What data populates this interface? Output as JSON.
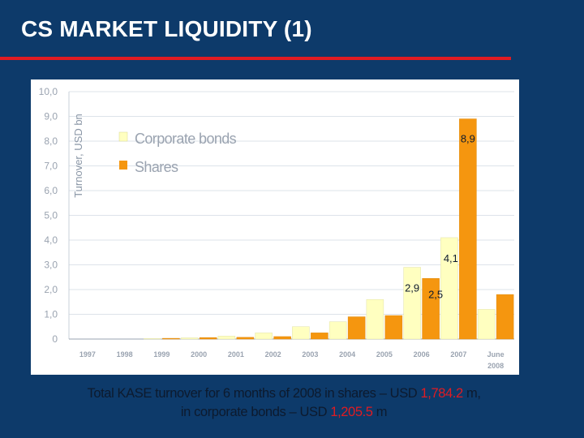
{
  "slide": {
    "title": "CS MARKET LIQUIDITY (1)"
  },
  "footer": {
    "line1_prefix": "Total KASE turnover for 6 months of 2008 in shares – USD",
    "line1_value": "1,784.2",
    "line1_suffix": "m,",
    "line2_prefix": "in corporate bonds – USD",
    "line2_value": "1,205.5",
    "line2_suffix": "m"
  },
  "colors": {
    "background": "#0d3a6a",
    "title_rule": "#e01b22",
    "plot_bg": "#ffffff",
    "corporate_bonds": "#ffffc0",
    "shares": "#f5960f",
    "highlight": "#e01b22"
  },
  "chart_data": {
    "type": "bar",
    "ylabel": "Turnover, USD bn",
    "ylim": [
      0,
      10
    ],
    "y_ticks": [
      "0",
      "1,0",
      "2,0",
      "3,0",
      "4,0",
      "5,0",
      "6,0",
      "7,0",
      "8,0",
      "9,0",
      "10,0"
    ],
    "categories": [
      "1997",
      "1998",
      "1999",
      "2000",
      "2001",
      "2002",
      "2003",
      "2004",
      "2005",
      "2006",
      "2007",
      "June 2008"
    ],
    "grid": true,
    "legend_position": "top-left",
    "series": [
      {
        "name": "Corporate bonds",
        "values": [
          0,
          0,
          0.02,
          0.05,
          0.12,
          0.25,
          0.5,
          0.7,
          1.6,
          2.9,
          4.1,
          1.2
        ]
      },
      {
        "name": "Shares",
        "values": [
          0,
          0,
          0.03,
          0.06,
          0.07,
          0.1,
          0.25,
          0.9,
          0.95,
          2.45,
          8.9,
          1.8
        ]
      }
    ],
    "data_labels": [
      {
        "category": "2006",
        "series": "Corporate bonds",
        "text": "2,9"
      },
      {
        "category": "2006",
        "series": "Shares",
        "text": "2,5"
      },
      {
        "category": "2007",
        "series": "Corporate bonds",
        "text": "4,1"
      },
      {
        "category": "2007",
        "series": "Shares",
        "text": "8,9"
      }
    ]
  }
}
